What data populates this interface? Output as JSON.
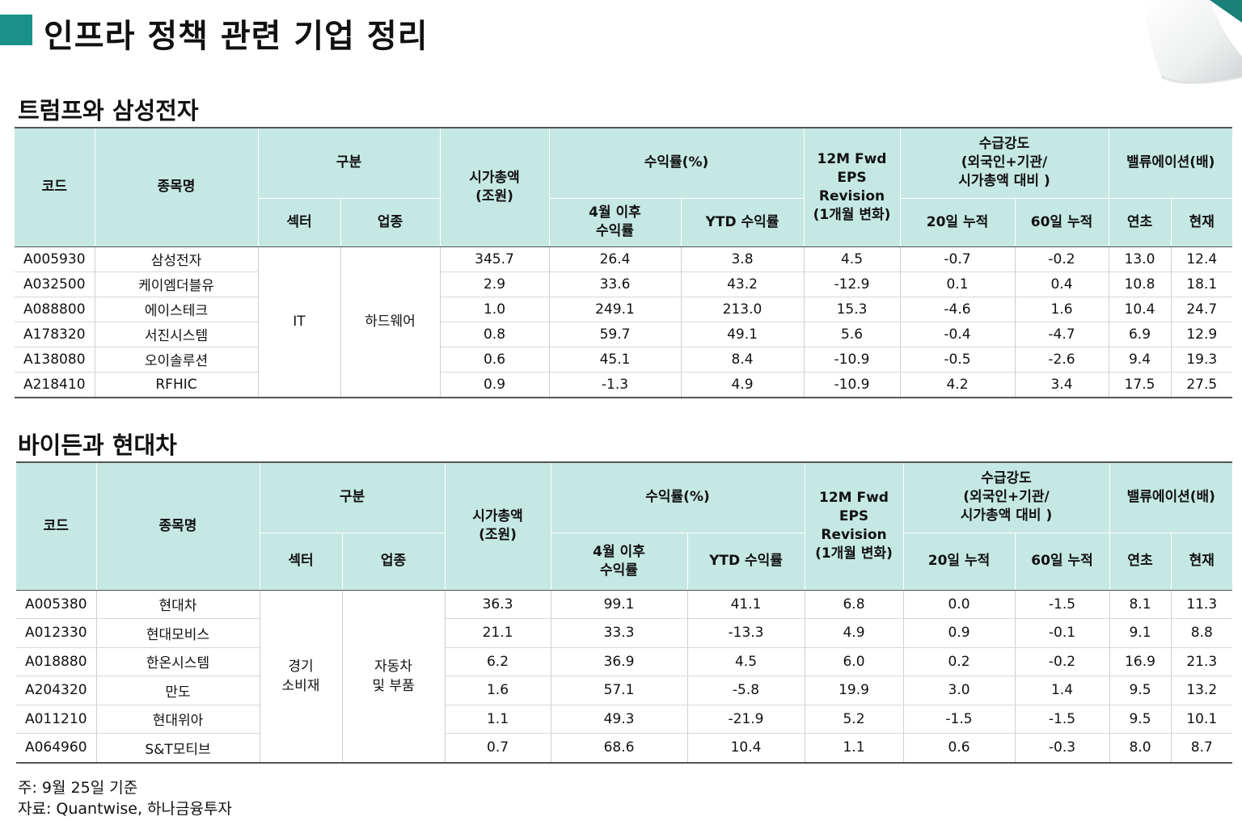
{
  "page_title": "인프라 정책 관련 기업 정리",
  "colors": {
    "accent": "#1a9188",
    "header_bg": "#c5e8e3"
  },
  "headers": {
    "code": "코드",
    "name": "종목명",
    "category": "구분",
    "sector": "섹터",
    "industry": "업종",
    "mktcap_l1": "시가총액",
    "mktcap_l2": "(조원)",
    "returns": "수익률(%)",
    "ret_apr_l1": "4월 이후",
    "ret_apr_l2": "수익률",
    "ret_ytd": "YTD 수익률",
    "eps_l1": "12M Fwd",
    "eps_l2": "EPS",
    "eps_l3": "Revision",
    "eps_l4": "(1개월 변화)",
    "flow_l1": "수급강도",
    "flow_l2": "(외국인+기관/",
    "flow_l3": "시가총액 대비 )",
    "flow_20": "20일 누적",
    "flow_60": "60일 누적",
    "valuation": "밸류에이션(배)",
    "val_begin": "연초",
    "val_now": "현재"
  },
  "section1": {
    "title": "트럼프와 삼성전자",
    "sector": "IT",
    "industry": "하드웨어",
    "rows": [
      {
        "code": "A005930",
        "name": "삼성전자",
        "mktcap": "345.7",
        "ret_apr": "26.4",
        "ret_ytd": "3.8",
        "eps": "4.5",
        "flow20": "-0.7",
        "flow60": "-0.2",
        "val_begin": "13.0",
        "val_now": "12.4"
      },
      {
        "code": "A032500",
        "name": "케이엠더블유",
        "mktcap": "2.9",
        "ret_apr": "33.6",
        "ret_ytd": "43.2",
        "eps": "-12.9",
        "flow20": "0.1",
        "flow60": "0.4",
        "val_begin": "10.8",
        "val_now": "18.1"
      },
      {
        "code": "A088800",
        "name": "에이스테크",
        "mktcap": "1.0",
        "ret_apr": "249.1",
        "ret_ytd": "213.0",
        "eps": "15.3",
        "flow20": "-4.6",
        "flow60": "1.6",
        "val_begin": "10.4",
        "val_now": "24.7"
      },
      {
        "code": "A178320",
        "name": "서진시스템",
        "mktcap": "0.8",
        "ret_apr": "59.7",
        "ret_ytd": "49.1",
        "eps": "5.6",
        "flow20": "-0.4",
        "flow60": "-4.7",
        "val_begin": "6.9",
        "val_now": "12.9"
      },
      {
        "code": "A138080",
        "name": "오이솔루션",
        "mktcap": "0.6",
        "ret_apr": "45.1",
        "ret_ytd": "8.4",
        "eps": "-10.9",
        "flow20": "-0.5",
        "flow60": "-2.6",
        "val_begin": "9.4",
        "val_now": "19.3"
      },
      {
        "code": "A218410",
        "name": "RFHIC",
        "mktcap": "0.9",
        "ret_apr": "-1.3",
        "ret_ytd": "4.9",
        "eps": "-10.9",
        "flow20": "4.2",
        "flow60": "3.4",
        "val_begin": "17.5",
        "val_now": "27.5"
      }
    ]
  },
  "section2": {
    "title": "바이든과 현대차",
    "sector_l1": "경기",
    "sector_l2": "소비재",
    "industry_l1": "자동차",
    "industry_l2": "및 부품",
    "rows": [
      {
        "code": "A005380",
        "name": "현대차",
        "mktcap": "36.3",
        "ret_apr": "99.1",
        "ret_ytd": "41.1",
        "eps": "6.8",
        "flow20": "0.0",
        "flow60": "-1.5",
        "val_begin": "8.1",
        "val_now": "11.3"
      },
      {
        "code": "A012330",
        "name": "현대모비스",
        "mktcap": "21.1",
        "ret_apr": "33.3",
        "ret_ytd": "-13.3",
        "eps": "4.9",
        "flow20": "0.9",
        "flow60": "-0.1",
        "val_begin": "9.1",
        "val_now": "8.8"
      },
      {
        "code": "A018880",
        "name": "한온시스템",
        "mktcap": "6.2",
        "ret_apr": "36.9",
        "ret_ytd": "4.5",
        "eps": "6.0",
        "flow20": "0.2",
        "flow60": "-0.2",
        "val_begin": "16.9",
        "val_now": "21.3"
      },
      {
        "code": "A204320",
        "name": "만도",
        "mktcap": "1.6",
        "ret_apr": "57.1",
        "ret_ytd": "-5.8",
        "eps": "19.9",
        "flow20": "3.0",
        "flow60": "1.4",
        "val_begin": "9.5",
        "val_now": "13.2"
      },
      {
        "code": "A011210",
        "name": "현대위아",
        "mktcap": "1.1",
        "ret_apr": "49.3",
        "ret_ytd": "-21.9",
        "eps": "5.2",
        "flow20": "-1.5",
        "flow60": "-1.5",
        "val_begin": "9.5",
        "val_now": "10.1"
      },
      {
        "code": "A064960",
        "name": "S&T모티브",
        "mktcap": "0.7",
        "ret_apr": "68.6",
        "ret_ytd": "10.4",
        "eps": "1.1",
        "flow20": "0.6",
        "flow60": "-0.3",
        "val_begin": "8.0",
        "val_now": "8.7"
      }
    ]
  },
  "footnote": {
    "note": "주: 9월 25일 기준",
    "source": "자료: Quantwise, 하나금융투자"
  }
}
